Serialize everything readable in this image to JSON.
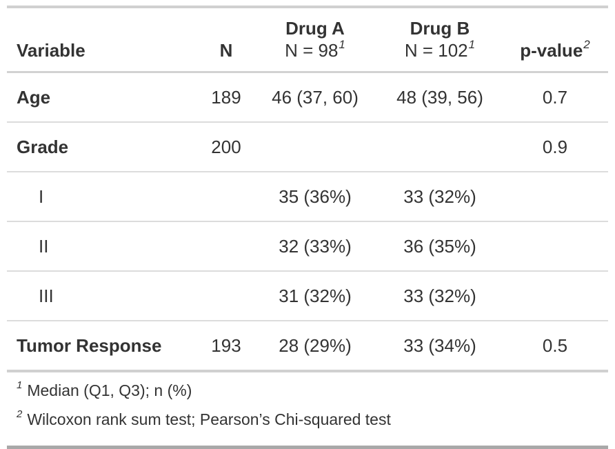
{
  "colors": {
    "text": "#333333",
    "border_light": "#dcdcdc",
    "border_medium": "#d0d0d0",
    "border_dark": "#a8a8a8",
    "background": "#ffffff"
  },
  "table": {
    "header": {
      "variable": "Variable",
      "n": "N",
      "drug_a": {
        "title": "Drug A",
        "subtitle": "N = 98",
        "footnote_mark": "1"
      },
      "drug_b": {
        "title": "Drug B",
        "subtitle": "N = 102",
        "footnote_mark": "1"
      },
      "p_value": {
        "title": "p-value",
        "footnote_mark": "2"
      }
    },
    "rows": [
      {
        "type": "variable",
        "label": "Age",
        "n": "189",
        "drug_a": "46 (37, 60)",
        "drug_b": "48 (39, 56)",
        "p": "0.7"
      },
      {
        "type": "variable",
        "label": "Grade",
        "n": "200",
        "drug_a": "",
        "drug_b": "",
        "p": "0.9"
      },
      {
        "type": "level",
        "label": "I",
        "n": "",
        "drug_a": "35 (36%)",
        "drug_b": "33 (32%)",
        "p": ""
      },
      {
        "type": "level",
        "label": "II",
        "n": "",
        "drug_a": "32 (33%)",
        "drug_b": "36 (35%)",
        "p": ""
      },
      {
        "type": "level",
        "label": "III",
        "n": "",
        "drug_a": "31 (32%)",
        "drug_b": "33 (32%)",
        "p": ""
      },
      {
        "type": "variable",
        "label": "Tumor Response",
        "n": "193",
        "drug_a": "28 (29%)",
        "drug_b": "33 (34%)",
        "p": "0.5"
      }
    ],
    "footnotes": [
      {
        "mark": "1",
        "text": "Median (Q1, Q3); n (%)"
      },
      {
        "mark": "2",
        "text": "Wilcoxon rank sum test; Pearson’s Chi-squared test"
      }
    ]
  }
}
